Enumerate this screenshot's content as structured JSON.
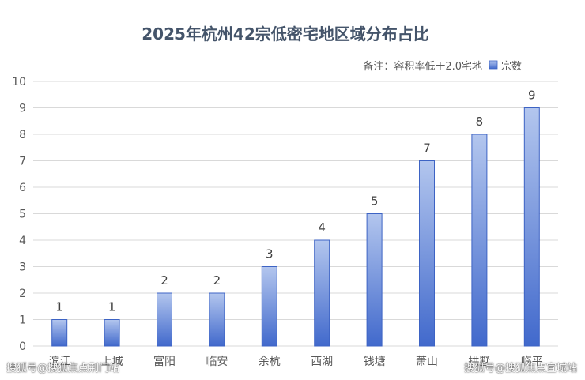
{
  "colors": {
    "bar_top": "#b3c6ee",
    "bar_bottom": "#4169cc",
    "bar_stroke": "#3d63c4",
    "title": "#44546a",
    "text": "#595959",
    "grid": "#d9d9d9"
  },
  "watermarks": {
    "left": "搜狐号@搜狐焦点荆门站",
    "right": "搜狐号@搜狐焦点宣城站"
  },
  "chart_data": {
    "type": "bar",
    "title": "2025年杭州42宗低密宅地区域分布占比",
    "note": "备注：容积率低于2.0宅地",
    "legend": [
      "宗数"
    ],
    "legend_position": "top-right",
    "xlabel": "",
    "ylabel": "",
    "ylim": [
      0,
      10
    ],
    "yticks": [
      "0",
      "1",
      "2",
      "3",
      "4",
      "5",
      "6",
      "7",
      "8",
      "9",
      "10"
    ],
    "grid": true,
    "categories": [
      "滨江",
      "上城",
      "富阳",
      "临安",
      "余杭",
      "西湖",
      "钱塘",
      "萧山",
      "拱墅",
      "临平"
    ],
    "series": [
      {
        "name": "宗数",
        "values": [
          1,
          1,
          2,
          2,
          3,
          4,
          5,
          7,
          8,
          9
        ]
      }
    ]
  }
}
